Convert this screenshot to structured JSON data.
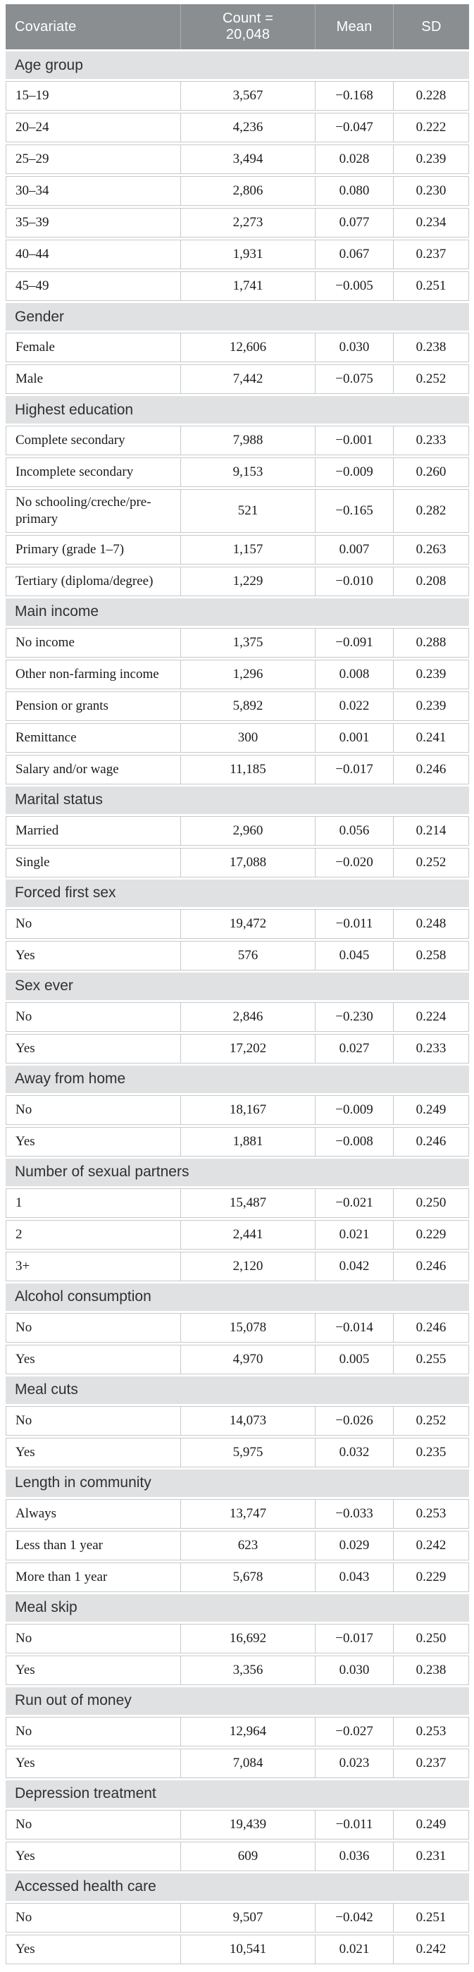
{
  "table": {
    "header": {
      "covariate": "Covariate",
      "count_line1": "Count =",
      "count_line2": "20,048",
      "mean": "Mean",
      "sd": "SD"
    },
    "colors": {
      "header_bg": "#8b8e90",
      "header_text": "#ffffff",
      "section_bg": "#e0e1e2",
      "border": "#c7c9ca",
      "body_text": "#1b1b1b"
    },
    "sections": [
      {
        "title": "Age group",
        "rows": [
          {
            "label": "15–19",
            "count": "3,567",
            "mean": "−0.168",
            "sd": "0.228"
          },
          {
            "label": "20–24",
            "count": "4,236",
            "mean": "−0.047",
            "sd": "0.222"
          },
          {
            "label": "25–29",
            "count": "3,494",
            "mean": "0.028",
            "sd": "0.239"
          },
          {
            "label": "30–34",
            "count": "2,806",
            "mean": "0.080",
            "sd": "0.230"
          },
          {
            "label": "35–39",
            "count": "2,273",
            "mean": "0.077",
            "sd": "0.234"
          },
          {
            "label": "40–44",
            "count": "1,931",
            "mean": "0.067",
            "sd": "0.237"
          },
          {
            "label": "45–49",
            "count": "1,741",
            "mean": "−0.005",
            "sd": "0.251"
          }
        ]
      },
      {
        "title": "Gender",
        "rows": [
          {
            "label": "Female",
            "count": "12,606",
            "mean": "0.030",
            "sd": "0.238"
          },
          {
            "label": "Male",
            "count": "7,442",
            "mean": "−0.075",
            "sd": "0.252"
          }
        ]
      },
      {
        "title": "Highest education",
        "rows": [
          {
            "label": "Complete secondary",
            "count": "7,988",
            "mean": "−0.001",
            "sd": "0.233"
          },
          {
            "label": "Incomplete secondary",
            "count": "9,153",
            "mean": "−0.009",
            "sd": "0.260"
          },
          {
            "label": "No schooling/creche/pre-primary",
            "count": "521",
            "mean": "−0.165",
            "sd": "0.282"
          },
          {
            "label": "Primary (grade 1–7)",
            "count": "1,157",
            "mean": "0.007",
            "sd": "0.263"
          },
          {
            "label": "Tertiary (diploma/degree)",
            "count": "1,229",
            "mean": "−0.010",
            "sd": "0.208"
          }
        ]
      },
      {
        "title": "Main income",
        "rows": [
          {
            "label": "No income",
            "count": "1,375",
            "mean": "−0.091",
            "sd": "0.288"
          },
          {
            "label": "Other non-farming income",
            "count": "1,296",
            "mean": "0.008",
            "sd": "0.239"
          },
          {
            "label": "Pension or grants",
            "count": "5,892",
            "mean": "0.022",
            "sd": "0.239"
          },
          {
            "label": "Remittance",
            "count": "300",
            "mean": "0.001",
            "sd": "0.241"
          },
          {
            "label": "Salary and/or wage",
            "count": "11,185",
            "mean": "−0.017",
            "sd": "0.246"
          }
        ]
      },
      {
        "title": "Marital status",
        "rows": [
          {
            "label": "Married",
            "count": "2,960",
            "mean": "0.056",
            "sd": "0.214"
          },
          {
            "label": "Single",
            "count": "17,088",
            "mean": "−0.020",
            "sd": "0.252"
          }
        ]
      },
      {
        "title": "Forced first sex",
        "rows": [
          {
            "label": "No",
            "count": "19,472",
            "mean": "−0.011",
            "sd": "0.248"
          },
          {
            "label": "Yes",
            "count": "576",
            "mean": "0.045",
            "sd": "0.258"
          }
        ]
      },
      {
        "title": "Sex ever",
        "rows": [
          {
            "label": "No",
            "count": "2,846",
            "mean": "−0.230",
            "sd": "0.224"
          },
          {
            "label": "Yes",
            "count": "17,202",
            "mean": "0.027",
            "sd": "0.233"
          }
        ]
      },
      {
        "title": "Away from home",
        "rows": [
          {
            "label": "No",
            "count": "18,167",
            "mean": "−0.009",
            "sd": "0.249"
          },
          {
            "label": "Yes",
            "count": "1,881",
            "mean": "−0.008",
            "sd": "0.246"
          }
        ]
      },
      {
        "title": "Number of sexual partners",
        "rows": [
          {
            "label": "1",
            "count": "15,487",
            "mean": "−0.021",
            "sd": "0.250"
          },
          {
            "label": "2",
            "count": "2,441",
            "mean": "0.021",
            "sd": "0.229"
          },
          {
            "label": "3+",
            "count": "2,120",
            "mean": "0.042",
            "sd": "0.246"
          }
        ]
      },
      {
        "title": "Alcohol consumption",
        "rows": [
          {
            "label": "No",
            "count": "15,078",
            "mean": "−0.014",
            "sd": "0.246"
          },
          {
            "label": "Yes",
            "count": "4,970",
            "mean": "0.005",
            "sd": "0.255"
          }
        ]
      },
      {
        "title": "Meal cuts",
        "rows": [
          {
            "label": "No",
            "count": "14,073",
            "mean": "−0.026",
            "sd": "0.252"
          },
          {
            "label": "Yes",
            "count": "5,975",
            "mean": "0.032",
            "sd": "0.235"
          }
        ]
      },
      {
        "title": "Length in community",
        "rows": [
          {
            "label": "Always",
            "count": "13,747",
            "mean": "−0.033",
            "sd": "0.253"
          },
          {
            "label": "Less than 1 year",
            "count": "623",
            "mean": "0.029",
            "sd": "0.242"
          },
          {
            "label": "More than 1 year",
            "count": "5,678",
            "mean": "0.043",
            "sd": "0.229"
          }
        ]
      },
      {
        "title": "Meal skip",
        "rows": [
          {
            "label": "No",
            "count": "16,692",
            "mean": "−0.017",
            "sd": "0.250"
          },
          {
            "label": "Yes",
            "count": "3,356",
            "mean": "0.030",
            "sd": "0.238"
          }
        ]
      },
      {
        "title": "Run out of money",
        "rows": [
          {
            "label": "No",
            "count": "12,964",
            "mean": "−0.027",
            "sd": "0.253"
          },
          {
            "label": "Yes",
            "count": "7,084",
            "mean": "0.023",
            "sd": "0.237"
          }
        ]
      },
      {
        "title": "Depression treatment",
        "rows": [
          {
            "label": "No",
            "count": "19,439",
            "mean": "−0.011",
            "sd": "0.249"
          },
          {
            "label": "Yes",
            "count": "609",
            "mean": "0.036",
            "sd": "0.231"
          }
        ]
      },
      {
        "title": "Accessed health care",
        "rows": [
          {
            "label": "No",
            "count": "9,507",
            "mean": "−0.042",
            "sd": "0.251"
          },
          {
            "label": "Yes",
            "count": "10,541",
            "mean": "0.021",
            "sd": "0.242"
          }
        ]
      }
    ]
  }
}
